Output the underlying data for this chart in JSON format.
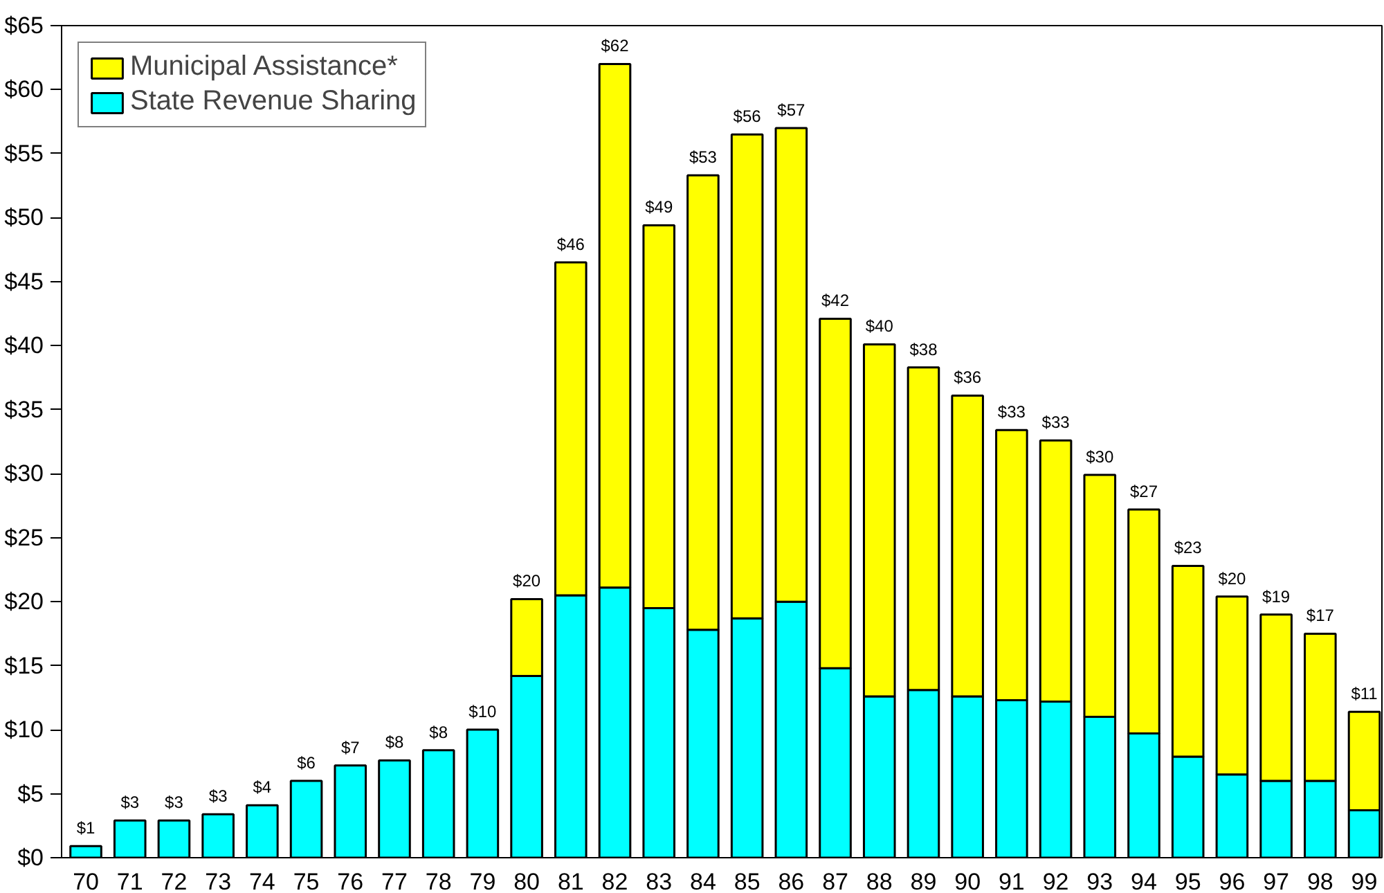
{
  "chart_data": {
    "type": "bar",
    "stacked": true,
    "categories": [
      "70",
      "71",
      "72",
      "73",
      "74",
      "75",
      "76",
      "77",
      "78",
      "79",
      "80",
      "81",
      "82",
      "83",
      "84",
      "85",
      "86",
      "87",
      "88",
      "89",
      "90",
      "91",
      "92",
      "93",
      "94",
      "95",
      "96",
      "97",
      "98",
      "99"
    ],
    "series": [
      {
        "name": "State Revenue Sharing",
        "color": "#00ffff",
        "values": [
          0.9,
          2.9,
          2.9,
          3.4,
          4.1,
          6.0,
          7.2,
          7.6,
          8.4,
          10.0,
          14.2,
          20.5,
          21.1,
          19.5,
          17.8,
          18.7,
          20.0,
          14.8,
          12.6,
          13.1,
          12.6,
          12.3,
          12.2,
          11.0,
          9.7,
          7.9,
          6.5,
          6.0,
          6.0,
          3.7
        ]
      },
      {
        "name": "Municipal Assistance*",
        "color": "#ffff00",
        "values": [
          null,
          null,
          null,
          null,
          null,
          null,
          null,
          null,
          null,
          null,
          6.0,
          26.0,
          40.9,
          29.9,
          35.5,
          37.8,
          37.0,
          27.3,
          27.5,
          25.2,
          23.5,
          21.1,
          20.4,
          18.9,
          17.5,
          14.9,
          13.9,
          13.0,
          11.5,
          7.7
        ]
      }
    ],
    "totals": [
      "$1",
      "$3",
      "$3",
      "$3",
      "$4",
      "$6",
      "$7",
      "$8",
      "$8",
      "$10",
      "$20",
      "$46",
      "$62",
      "$49",
      "$53",
      "$56",
      "$57",
      "$42",
      "$40",
      "$38",
      "$36",
      "$33",
      "$33",
      "$30",
      "$27",
      "$23",
      "$20",
      "$19",
      "$17",
      "$11"
    ],
    "ylim": [
      0,
      65
    ],
    "yticks": [
      {
        "value": 0,
        "label": "$0"
      },
      {
        "value": 5,
        "label": "$5"
      },
      {
        "value": 10,
        "label": "$10"
      },
      {
        "value": 15,
        "label": "$15"
      },
      {
        "value": 20,
        "label": "$20"
      },
      {
        "value": 25,
        "label": "$25"
      },
      {
        "value": 30,
        "label": "$30"
      },
      {
        "value": 35,
        "label": "$35"
      },
      {
        "value": 40,
        "label": "$40"
      },
      {
        "value": 45,
        "label": "$45"
      },
      {
        "value": 50,
        "label": "$50"
      },
      {
        "value": 55,
        "label": "$55"
      },
      {
        "value": 60,
        "label": "$60"
      },
      {
        "value": 65,
        "label": "$65"
      }
    ],
    "grid": false,
    "legend": "top left"
  }
}
